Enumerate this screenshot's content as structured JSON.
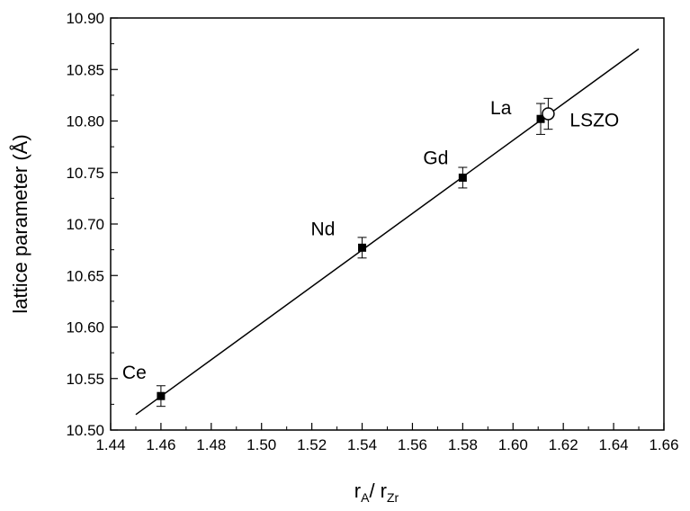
{
  "chart_data": {
    "type": "scatter",
    "title": "",
    "xlabel_main": "r",
    "xlabel_sub1": "A",
    "xlabel_mid": "/ r",
    "xlabel_sub2": "Zr",
    "ylabel": "lattice parameter (Å)",
    "xlim": [
      1.44,
      1.66
    ],
    "ylim": [
      10.5,
      10.9
    ],
    "x_ticks": [
      1.44,
      1.46,
      1.48,
      1.5,
      1.52,
      1.54,
      1.56,
      1.58,
      1.6,
      1.62,
      1.64,
      1.66
    ],
    "y_ticks": [
      10.5,
      10.55,
      10.6,
      10.65,
      10.7,
      10.75,
      10.8,
      10.85,
      10.9
    ],
    "grid": false,
    "points": [
      {
        "label": "Ce",
        "x": 1.46,
        "y": 10.533,
        "err": 0.01,
        "marker": "filled-square"
      },
      {
        "label": "Nd",
        "x": 1.54,
        "y": 10.677,
        "err": 0.01,
        "marker": "filled-square"
      },
      {
        "label": "Gd",
        "x": 1.58,
        "y": 10.745,
        "err": 0.01,
        "marker": "filled-square"
      },
      {
        "label": "La",
        "x": 1.611,
        "y": 10.802,
        "err": 0.015,
        "marker": "filled-square"
      },
      {
        "label": "LSZO",
        "x": 1.614,
        "y": 10.807,
        "err": 0.015,
        "marker": "open-circle"
      }
    ],
    "fit_line": {
      "x": [
        1.45,
        1.65
      ],
      "y": [
        10.515,
        10.87
      ]
    }
  }
}
